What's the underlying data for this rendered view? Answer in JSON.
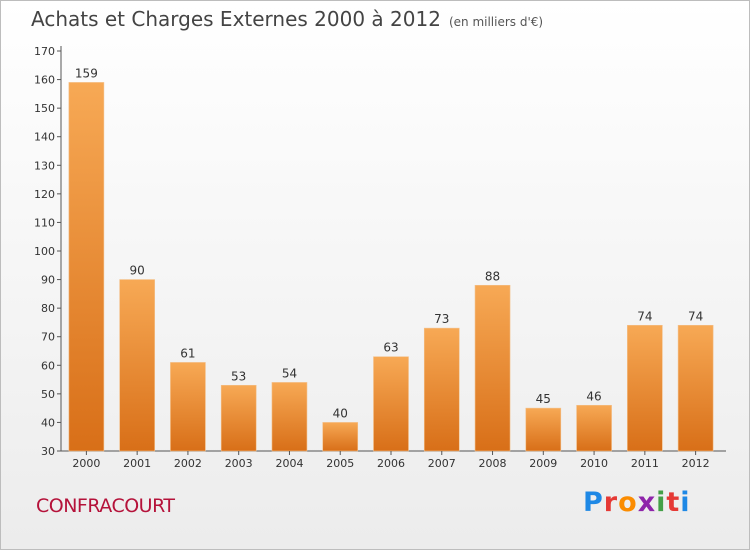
{
  "title": "Achats et Charges Externes 2000 à 2012",
  "unit": "(en milliers d'€)",
  "commune": "CONFRACOURT",
  "logo": {
    "letters": [
      "P",
      "r",
      "o",
      "x",
      "i",
      "t",
      "i"
    ],
    "colors": [
      "#1e88e5",
      "#e53935",
      "#fb8c00",
      "#8e24aa",
      "#43a047",
      "#e53935",
      "#1e88e5"
    ]
  },
  "colors": {
    "bar_light": "#f7a955",
    "bar_dark": "#d86f18",
    "accent": "#b5123a"
  },
  "chart_data": {
    "type": "bar",
    "categories": [
      "2000",
      "2001",
      "2002",
      "2003",
      "2004",
      "2005",
      "2006",
      "2007",
      "2008",
      "2009",
      "2010",
      "2011",
      "2012"
    ],
    "values": [
      159,
      90,
      61,
      53,
      54,
      40,
      63,
      73,
      88,
      45,
      46,
      74,
      74
    ],
    "ylim": [
      30,
      170
    ],
    "yticks": [
      30,
      40,
      50,
      60,
      70,
      80,
      90,
      100,
      110,
      120,
      130,
      140,
      150,
      160,
      170
    ],
    "grid": false
  }
}
